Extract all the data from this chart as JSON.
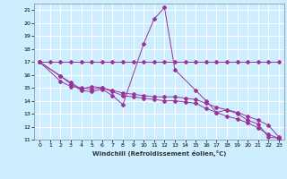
{
  "xlabel": "Windchill (Refroidissement éolien,°C)",
  "background_color": "#cceeff",
  "grid_color": "#ffffff",
  "line_color": "#993399",
  "xlim": [
    -0.5,
    23.5
  ],
  "ylim": [
    11,
    21.5
  ],
  "xticks": [
    0,
    1,
    2,
    3,
    4,
    5,
    6,
    7,
    8,
    9,
    10,
    11,
    12,
    13,
    14,
    15,
    16,
    17,
    18,
    19,
    20,
    21,
    22,
    23
  ],
  "yticks": [
    11,
    12,
    13,
    14,
    15,
    16,
    17,
    18,
    19,
    20,
    21
  ],
  "line1_x": [
    0,
    1,
    2,
    3,
    4,
    5,
    6,
    7,
    8,
    9,
    10,
    11,
    12,
    13,
    14,
    15,
    16,
    17,
    18,
    19,
    20,
    21,
    22,
    23
  ],
  "line1_y": [
    17,
    17,
    17,
    17,
    17,
    17,
    17,
    17,
    17,
    17,
    17,
    17,
    17,
    17,
    17,
    17,
    17,
    17,
    17,
    17,
    17,
    17,
    17,
    17
  ],
  "line2_x": [
    0,
    2,
    3,
    4,
    5,
    6,
    7,
    8,
    10,
    11,
    12,
    13,
    15,
    16,
    17,
    18,
    19,
    20,
    21,
    22,
    23
  ],
  "line2_y": [
    17,
    15.9,
    15.3,
    14.8,
    14.7,
    14.9,
    14.4,
    13.7,
    18.4,
    20.3,
    21.2,
    16.4,
    14.8,
    14.0,
    13.1,
    13.3,
    13.0,
    12.5,
    12.2,
    11.2,
    11.1
  ],
  "line3_x": [
    0,
    2,
    3,
    4,
    5,
    6,
    7,
    8,
    9,
    10,
    11,
    12,
    13,
    14,
    15,
    16,
    17,
    18,
    19,
    20,
    21,
    22,
    23
  ],
  "line3_y": [
    17,
    15.5,
    15.1,
    15.0,
    14.9,
    15.0,
    14.8,
    14.6,
    14.5,
    14.4,
    14.3,
    14.3,
    14.3,
    14.2,
    14.1,
    13.8,
    13.5,
    13.3,
    13.1,
    12.8,
    12.5,
    12.1,
    11.2
  ],
  "line4_x": [
    0,
    2,
    3,
    4,
    5,
    6,
    7,
    8,
    9,
    10,
    11,
    12,
    13,
    14,
    15,
    16,
    17,
    18,
    19,
    20,
    21,
    22,
    23
  ],
  "line4_y": [
    17,
    15.9,
    15.4,
    14.9,
    15.1,
    15.0,
    14.7,
    14.4,
    14.3,
    14.2,
    14.1,
    14.0,
    14.0,
    13.9,
    13.8,
    13.4,
    13.1,
    12.8,
    12.6,
    12.3,
    11.9,
    11.4,
    11.1
  ]
}
